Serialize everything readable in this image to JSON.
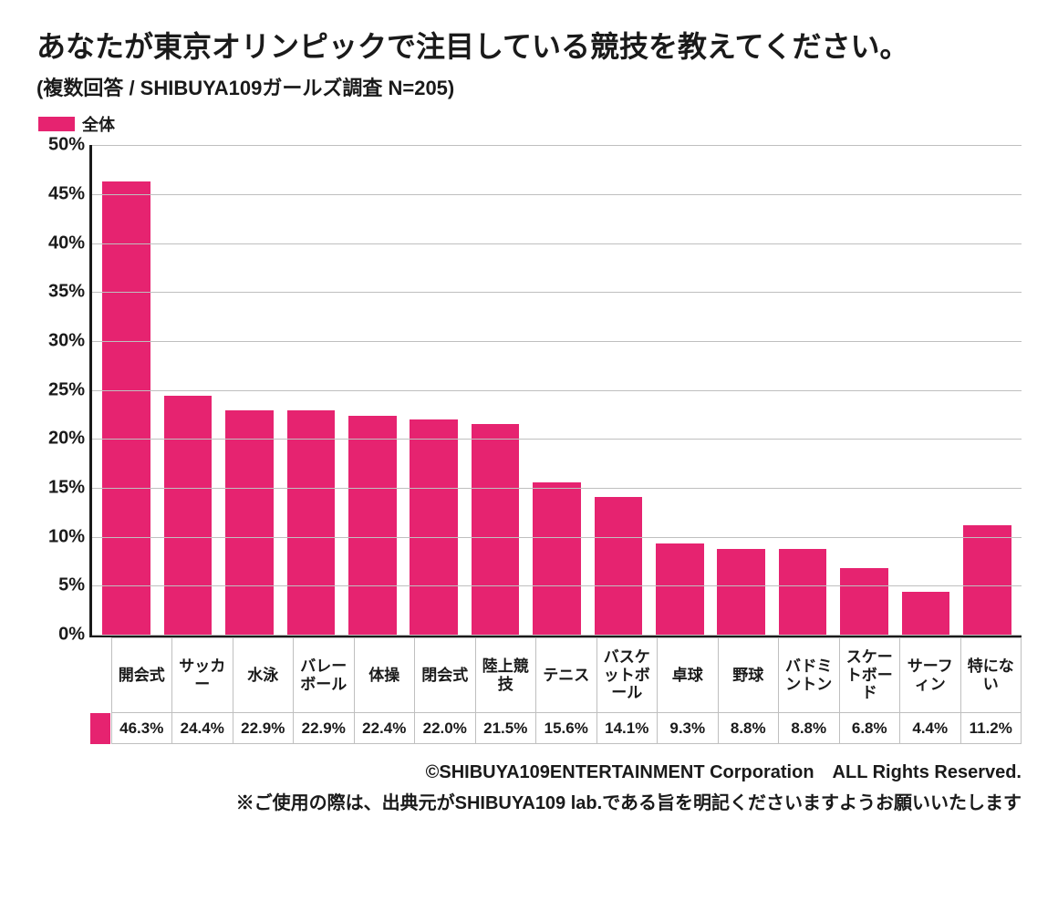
{
  "title": "あなたが東京オリンピックで注目している競技を教えてください。",
  "subtitle": "(複数回答 / SHIBUYA109ガールズ調査 N=205)",
  "legend": {
    "label": "全体",
    "color": "#e62370"
  },
  "chart": {
    "type": "bar",
    "categories": [
      "開会式",
      "サッカー",
      "水泳",
      "バレーボール",
      "体操",
      "閉会式",
      "陸上競技",
      "テニス",
      "バスケットボール",
      "卓球",
      "野球",
      "バドミントン",
      "スケートボード",
      "サーフィン",
      "特にない"
    ],
    "values": [
      46.3,
      24.4,
      22.9,
      22.9,
      22.4,
      22.0,
      21.5,
      15.6,
      14.1,
      9.3,
      8.8,
      8.8,
      6.8,
      4.4,
      11.2
    ],
    "value_labels": [
      "46.3%",
      "24.4%",
      "22.9%",
      "22.9%",
      "22.4%",
      "22.0%",
      "21.5%",
      "15.6%",
      "14.1%",
      "9.3%",
      "8.8%",
      "8.8%",
      "6.8%",
      "4.4%",
      "11.2%"
    ],
    "bar_color": "#e62370",
    "ylim": [
      0,
      50
    ],
    "ytick_step": 5,
    "ytick_labels": [
      "0%",
      "5%",
      "10%",
      "15%",
      "20%",
      "25%",
      "30%",
      "35%",
      "40%",
      "45%",
      "50%"
    ],
    "grid_color": "#bfbfbf",
    "axis_color": "#1a1a1a",
    "background_color": "#ffffff",
    "title_fontsize": 32,
    "subtitle_fontsize": 22,
    "tick_fontsize": 20,
    "cell_fontsize": 17,
    "bar_width_ratio": 0.78
  },
  "credits": {
    "line1": "©SHIBUYA109ENTERTAINMENT Corporation　ALL Rights Reserved.",
    "line2": "※ご使用の際は、出典元がSHIBUYA109 lab.である旨を明記くださいますようお願いいたします"
  }
}
